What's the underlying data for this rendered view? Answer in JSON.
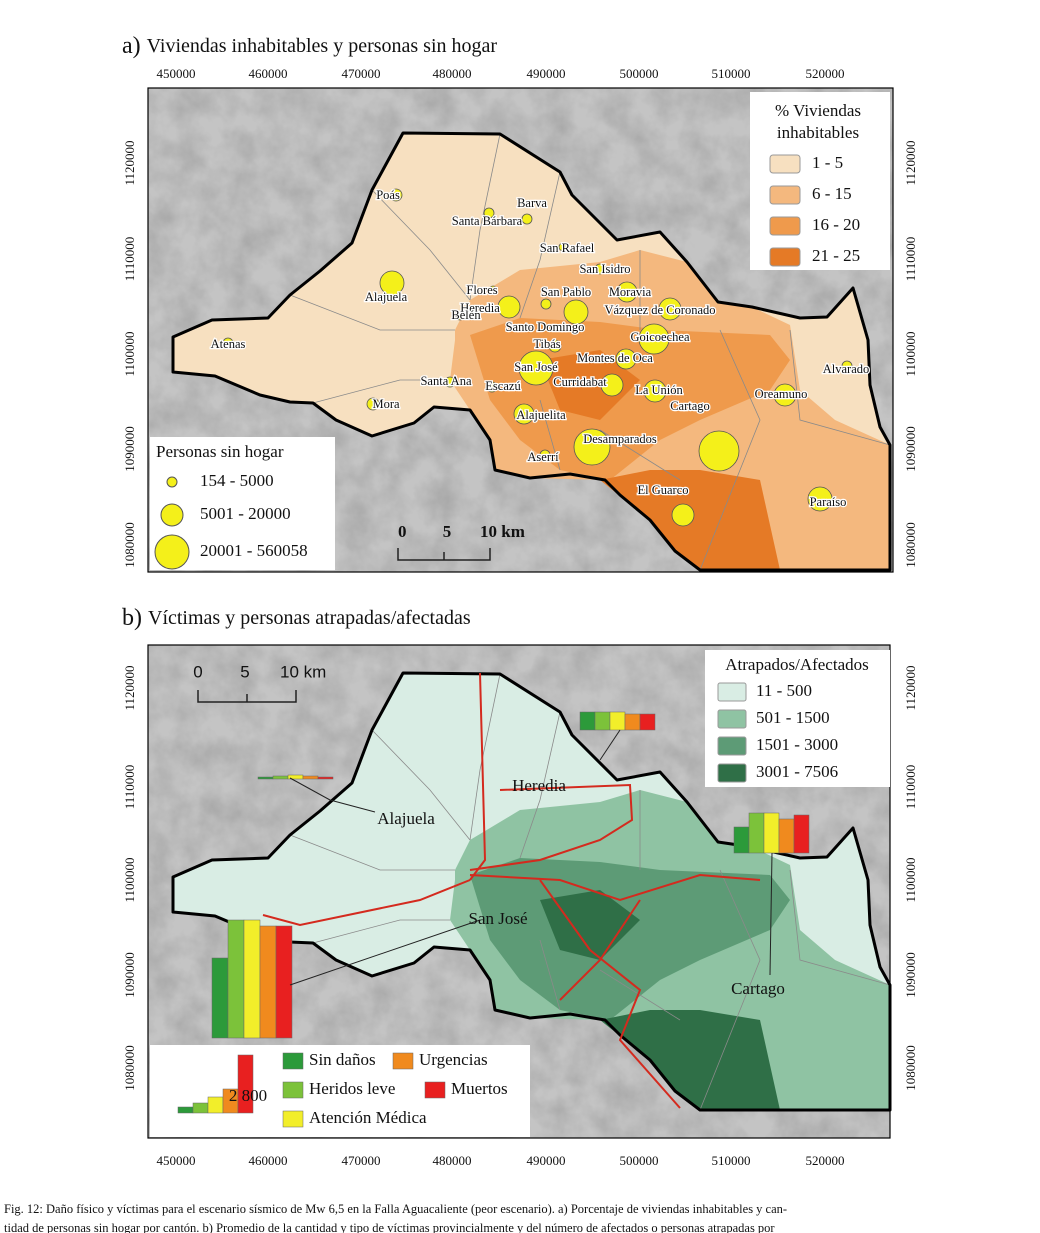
{
  "panel_a": {
    "letter": "a)",
    "title": "Viviendas inhabitables y personas sin hogar",
    "x_ticks": [
      450000,
      460000,
      470000,
      480000,
      490000,
      500000,
      510000,
      520000
    ],
    "y_ticks": [
      1120000,
      1110000,
      1100000,
      1090000,
      1080000
    ],
    "legend_pct": {
      "title": [
        "% Viviendas",
        "inhabitables"
      ],
      "items": [
        "1 - 5",
        "6 - 15",
        "16 - 20",
        "21 - 25"
      ]
    },
    "legend_people": {
      "title": "Personas sin hogar",
      "items": [
        "154 - 5000",
        "5001 - 20000",
        "20001 - 560058"
      ]
    },
    "scale": [
      "0",
      "5",
      "10 km"
    ],
    "places": [
      "Poás",
      "Santa Bárbara",
      "Barva",
      "San Rafael",
      "San Isidro",
      "Flores",
      "San Pablo",
      "Moravia",
      "Heredia",
      "Alajuela",
      "Vázquez de Coronado",
      "Belén",
      "Santo Domingo",
      "Goicoechea",
      "Atenas",
      "Tibás",
      "Montes de Oca",
      "San José",
      "Alvarado",
      "Santa Ana",
      "Curridabat",
      "Escazú",
      "La Unión",
      "Cartago",
      "Oreamuno",
      "Mora",
      "Alajuelita",
      "Desamparados",
      "Aserrí",
      "El Guarco",
      "Paraíso"
    ]
  },
  "panel_b": {
    "letter": "b)",
    "title": "Víctimas y personas atrapadas/afectadas",
    "x_ticks": [
      450000,
      460000,
      470000,
      480000,
      490000,
      500000,
      510000,
      520000
    ],
    "y_ticks": [
      1120000,
      1110000,
      1100000,
      1090000,
      1080000
    ],
    "legend_area": {
      "title": "Atrapados/Afectados",
      "items": [
        "11 - 500",
        "501 - 1500",
        "1501 - 3000",
        "3001 - 7506"
      ]
    },
    "legend_victims": {
      "items": [
        "Sin daños",
        "Urgencias",
        "Heridos leve",
        "Muertos",
        "Atención Médica"
      ],
      "bar_label": "2 800"
    },
    "scale": [
      "0",
      "5",
      "10 km"
    ],
    "provinces": [
      "Heredia",
      "Alajuela",
      "San José",
      "Cartago"
    ]
  },
  "caption": [
    "Fig. 12: Daño físico y víctimas para el escenario sísmico de Mw 6,5 en la Falla Aguacaliente (peor escenario). a) Porcentaje de viviendas inhabitables y can-",
    "tidad de personas sin hogar por cantón. b) Promedio de la cantidad y tipo de víctimas provincialmente y del número de afectados o personas atrapadas por"
  ]
}
